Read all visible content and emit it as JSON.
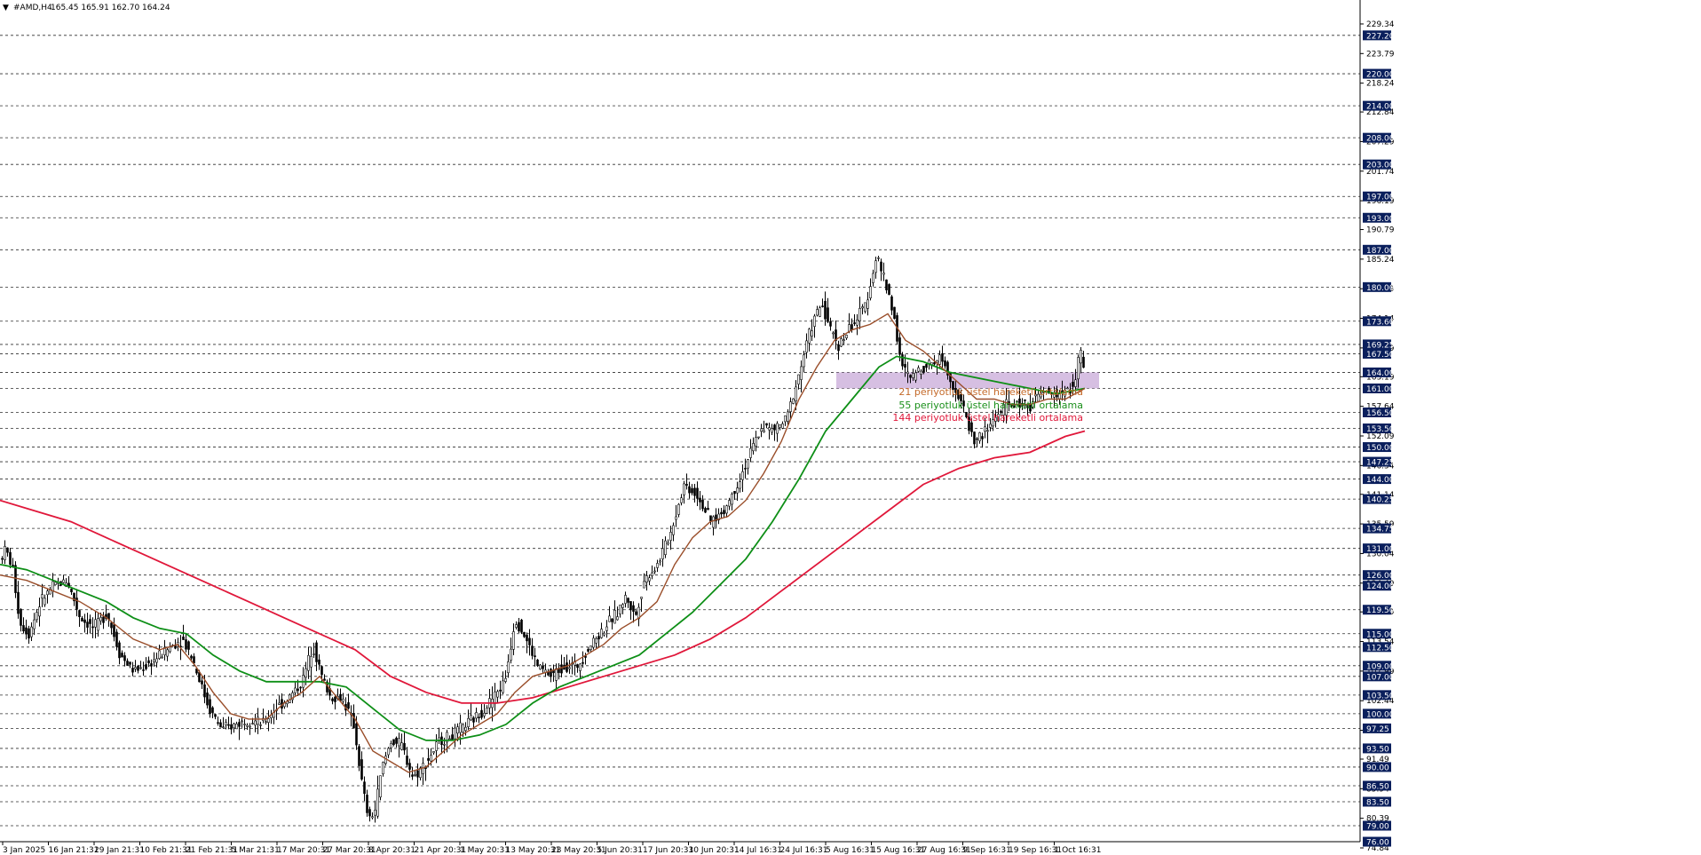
{
  "header": {
    "arrow": "▼",
    "symbol": "#AMD,H4",
    "ohlc": "165.45 165.91 162.70 164.24"
  },
  "chart_data": {
    "type": "candlestick",
    "title": "#AMD,H4",
    "ylim": [
      74.84,
      232.0
    ],
    "y_ticks": [
      "229.34",
      "223.79",
      "218.24",
      "212.84",
      "207.29",
      "201.74",
      "196.19",
      "190.79",
      "185.24",
      "179.69",
      "174.14",
      "168.59",
      "163.19",
      "157.64",
      "152.09",
      "146.54",
      "141.14",
      "135.59",
      "130.04",
      "124.49",
      "119.09",
      "113.54",
      "107.99",
      "102.44",
      "96.89",
      "91.49",
      "85.94",
      "80.39",
      "74.84"
    ],
    "levels": [
      "227.20",
      "220.00",
      "214.00",
      "208.00",
      "203.00",
      "197.00",
      "193.00",
      "187.00",
      "180.00",
      "173.60",
      "169.25",
      "167.50",
      "164.00",
      "161.00",
      "156.50",
      "153.50",
      "150.00",
      "147.25",
      "144.00",
      "140.25",
      "134.75",
      "131.00",
      "126.00",
      "124.00",
      "119.50",
      "115.00",
      "112.50",
      "109.00",
      "107.00",
      "103.50",
      "100.00",
      "97.25",
      "93.50",
      "90.00",
      "86.50",
      "83.50",
      "79.00",
      "76.00"
    ],
    "x_labels": [
      "3 Jan 2025",
      "16 Jan 21:31",
      "29 Jan 21:31",
      "10 Feb 21:31",
      "21 Feb 21:31",
      "5 Mar 21:31",
      "17 Mar 20:31",
      "27 Mar 20:31",
      "8 Apr 20:31",
      "21 Apr 20:31",
      "1 May 20:31",
      "13 May 20:31",
      "23 May 20:31",
      "5 Jun 20:31",
      "17 Jun 20:31",
      "30 Jun 20:31",
      "14 Jul 16:31",
      "24 Jul 16:31",
      "5 Aug 16:31",
      "15 Aug 16:31",
      "27 Aug 16:31",
      "9 Sep 16:31",
      "19 Sep 16:31",
      "1 Oct 16:31"
    ],
    "price_path": [
      [
        0,
        129
      ],
      [
        6,
        131
      ],
      [
        14,
        127
      ],
      [
        22,
        117
      ],
      [
        32,
        115
      ],
      [
        45,
        121
      ],
      [
        60,
        124
      ],
      [
        75,
        125
      ],
      [
        90,
        118
      ],
      [
        105,
        116
      ],
      [
        120,
        119
      ],
      [
        135,
        111
      ],
      [
        150,
        108
      ],
      [
        165,
        109
      ],
      [
        180,
        111
      ],
      [
        195,
        113
      ],
      [
        205,
        114
      ],
      [
        215,
        111
      ],
      [
        225,
        106
      ],
      [
        235,
        101
      ],
      [
        250,
        97
      ],
      [
        265,
        98
      ],
      [
        280,
        99
      ],
      [
        295,
        98
      ],
      [
        310,
        101
      ],
      [
        325,
        103
      ],
      [
        340,
        106
      ],
      [
        352,
        113
      ],
      [
        362,
        107
      ],
      [
        372,
        103
      ],
      [
        385,
        103
      ],
      [
        398,
        98
      ],
      [
        408,
        86
      ],
      [
        415,
        80
      ],
      [
        422,
        82
      ],
      [
        430,
        90
      ],
      [
        440,
        95
      ],
      [
        452,
        94
      ],
      [
        465,
        88
      ],
      [
        480,
        91
      ],
      [
        495,
        95
      ],
      [
        510,
        96
      ],
      [
        525,
        98
      ],
      [
        540,
        100
      ],
      [
        555,
        103
      ],
      [
        568,
        106
      ],
      [
        580,
        118
      ],
      [
        592,
        114
      ],
      [
        605,
        109
      ],
      [
        620,
        107
      ],
      [
        635,
        109
      ],
      [
        650,
        109
      ],
      [
        665,
        113
      ],
      [
        680,
        116
      ],
      [
        695,
        119
      ],
      [
        705,
        122
      ],
      [
        715,
        118
      ],
      [
        725,
        125
      ],
      [
        740,
        128
      ],
      [
        755,
        134
      ],
      [
        770,
        143
      ],
      [
        785,
        141
      ],
      [
        800,
        136
      ],
      [
        815,
        138
      ],
      [
        830,
        143
      ],
      [
        845,
        149
      ],
      [
        858,
        154
      ],
      [
        870,
        153
      ],
      [
        885,
        155
      ],
      [
        900,
        164
      ],
      [
        912,
        172
      ],
      [
        925,
        177
      ],
      [
        935,
        172
      ],
      [
        945,
        169
      ],
      [
        955,
        172
      ],
      [
        965,
        174
      ],
      [
        975,
        177
      ],
      [
        987,
        186
      ],
      [
        998,
        180
      ],
      [
        1005,
        176
      ],
      [
        1015,
        165
      ],
      [
        1025,
        163
      ],
      [
        1038,
        165
      ],
      [
        1050,
        166
      ],
      [
        1060,
        167
      ],
      [
        1072,
        162
      ],
      [
        1085,
        157
      ],
      [
        1097,
        151
      ],
      [
        1110,
        153
      ],
      [
        1122,
        156
      ],
      [
        1135,
        158
      ],
      [
        1148,
        158
      ],
      [
        1160,
        158
      ],
      [
        1172,
        160
      ],
      [
        1185,
        160
      ],
      [
        1197,
        160
      ],
      [
        1210,
        162
      ],
      [
        1216,
        168
      ],
      [
        1222,
        164
      ]
    ],
    "ema_21": [
      [
        0,
        126
      ],
      [
        30,
        125
      ],
      [
        60,
        123
      ],
      [
        90,
        121
      ],
      [
        120,
        118
      ],
      [
        150,
        114
      ],
      [
        180,
        112
      ],
      [
        200,
        113
      ],
      [
        220,
        109
      ],
      [
        240,
        104
      ],
      [
        260,
        100
      ],
      [
        280,
        99
      ],
      [
        300,
        99
      ],
      [
        320,
        102
      ],
      [
        340,
        104
      ],
      [
        360,
        107
      ],
      [
        380,
        103
      ],
      [
        400,
        99
      ],
      [
        420,
        93
      ],
      [
        440,
        91
      ],
      [
        460,
        89
      ],
      [
        480,
        90
      ],
      [
        500,
        93
      ],
      [
        520,
        96
      ],
      [
        540,
        98
      ],
      [
        560,
        100
      ],
      [
        580,
        104
      ],
      [
        600,
        107
      ],
      [
        620,
        108
      ],
      [
        640,
        109
      ],
      [
        660,
        111
      ],
      [
        680,
        113
      ],
      [
        700,
        116
      ],
      [
        720,
        118
      ],
      [
        740,
        121
      ],
      [
        760,
        128
      ],
      [
        780,
        133
      ],
      [
        800,
        136
      ],
      [
        820,
        137
      ],
      [
        840,
        140
      ],
      [
        860,
        145
      ],
      [
        880,
        151
      ],
      [
        900,
        159
      ],
      [
        920,
        165
      ],
      [
        940,
        170
      ],
      [
        960,
        172
      ],
      [
        980,
        173
      ],
      [
        1000,
        175
      ],
      [
        1020,
        170
      ],
      [
        1040,
        168
      ],
      [
        1060,
        165
      ],
      [
        1080,
        162
      ],
      [
        1100,
        159
      ],
      [
        1120,
        159
      ],
      [
        1140,
        158
      ],
      [
        1160,
        158
      ],
      [
        1180,
        159
      ],
      [
        1200,
        159
      ],
      [
        1222,
        161
      ]
    ],
    "ema_55": [
      [
        0,
        128
      ],
      [
        30,
        127
      ],
      [
        60,
        125
      ],
      [
        90,
        123
      ],
      [
        120,
        121
      ],
      [
        150,
        118
      ],
      [
        180,
        116
      ],
      [
        210,
        115
      ],
      [
        240,
        111
      ],
      [
        270,
        108
      ],
      [
        300,
        106
      ],
      [
        330,
        106
      ],
      [
        360,
        106
      ],
      [
        390,
        105
      ],
      [
        420,
        101
      ],
      [
        450,
        97
      ],
      [
        480,
        95
      ],
      [
        510,
        95
      ],
      [
        540,
        96
      ],
      [
        570,
        98
      ],
      [
        600,
        102
      ],
      [
        630,
        105
      ],
      [
        660,
        107
      ],
      [
        690,
        109
      ],
      [
        720,
        111
      ],
      [
        750,
        115
      ],
      [
        780,
        119
      ],
      [
        810,
        124
      ],
      [
        840,
        129
      ],
      [
        870,
        136
      ],
      [
        900,
        144
      ],
      [
        930,
        153
      ],
      [
        960,
        159
      ],
      [
        990,
        165
      ],
      [
        1010,
        167
      ],
      [
        1040,
        166
      ],
      [
        1070,
        164
      ],
      [
        1100,
        163
      ],
      [
        1130,
        162
      ],
      [
        1160,
        161
      ],
      [
        1190,
        160
      ],
      [
        1222,
        161
      ]
    ],
    "ema_144": [
      [
        0,
        140
      ],
      [
        40,
        138
      ],
      [
        80,
        136
      ],
      [
        120,
        133
      ],
      [
        160,
        130
      ],
      [
        200,
        127
      ],
      [
        240,
        124
      ],
      [
        280,
        121
      ],
      [
        320,
        118
      ],
      [
        360,
        115
      ],
      [
        400,
        112
      ],
      [
        440,
        107
      ],
      [
        480,
        104
      ],
      [
        520,
        102
      ],
      [
        560,
        102
      ],
      [
        600,
        103
      ],
      [
        640,
        105
      ],
      [
        680,
        107
      ],
      [
        720,
        109
      ],
      [
        760,
        111
      ],
      [
        800,
        114
      ],
      [
        840,
        118
      ],
      [
        880,
        123
      ],
      [
        920,
        128
      ],
      [
        960,
        133
      ],
      [
        1000,
        138
      ],
      [
        1040,
        143
      ],
      [
        1080,
        146
      ],
      [
        1120,
        148
      ],
      [
        1160,
        149
      ],
      [
        1200,
        152
      ],
      [
        1222,
        153
      ]
    ],
    "annotations": [
      {
        "text": "21 periyotluk üstel hareketli ortalama",
        "color": "#c46a2a"
      },
      {
        "text": "55 periyotluk üstel hareketli ortalama",
        "color": "#1a8f1a"
      },
      {
        "text": "144 periyotluk üstel hareketli ortalama",
        "color": "#e0173a"
      }
    ],
    "zone": {
      "from": 161.0,
      "to": 164.0,
      "color": "#c8a9d8"
    },
    "colors": {
      "ema21": "#9a4e2a",
      "ema55": "#0e8f17",
      "ema144": "#e0173a",
      "level_box": "#0a1f5c"
    }
  }
}
